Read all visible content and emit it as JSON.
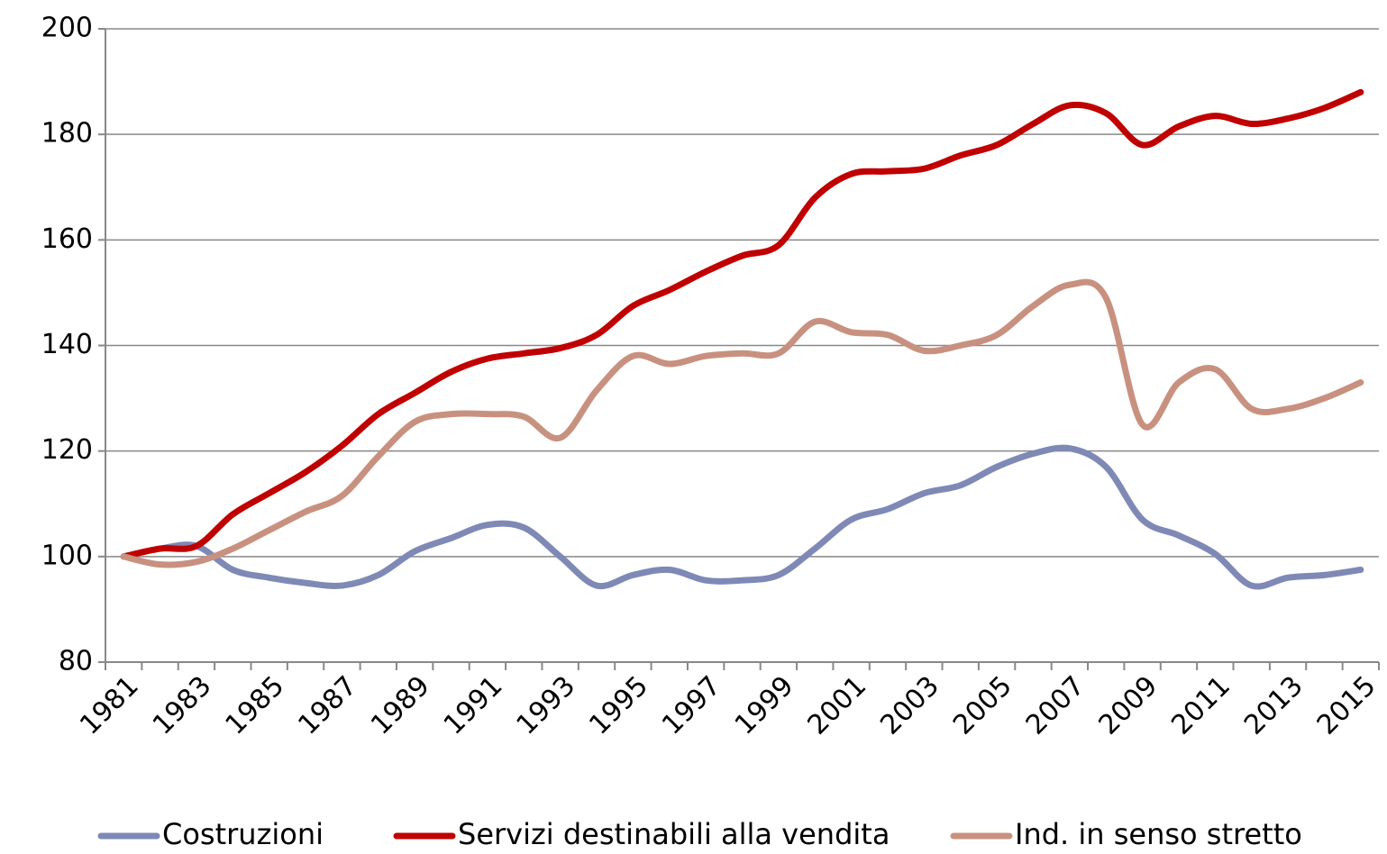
{
  "chart_data": {
    "type": "line",
    "categories": [
      "1981",
      null,
      "1983",
      null,
      "1985",
      null,
      "1987",
      null,
      "1989",
      null,
      "1991",
      null,
      "1993",
      null,
      "1995",
      null,
      "1997",
      null,
      "1999",
      null,
      "2001",
      null,
      "2003",
      null,
      "2005",
      null,
      "2007",
      null,
      "2009",
      null,
      "2011",
      null,
      "2013",
      null,
      "2015"
    ],
    "series": [
      {
        "name": "Costruzioni",
        "color": "#7f89b6",
        "values": [
          100,
          101.5,
          102,
          97.5,
          96,
          95,
          94.5,
          96.5,
          101,
          103.5,
          106,
          105.5,
          100,
          94.5,
          96.5,
          97.5,
          95.5,
          95.5,
          96.5,
          101.5,
          107,
          109,
          112,
          113.5,
          117,
          119.5,
          120.5,
          117,
          107,
          104,
          100.5,
          94.5,
          96,
          96.5,
          97.5
        ]
      },
      {
        "name": "Servizi destinabili alla vendita",
        "color": "#c00000",
        "values": [
          100,
          101.5,
          102,
          108,
          112,
          116,
          121,
          127,
          131,
          135,
          137.5,
          138.5,
          139.5,
          142,
          147.5,
          150.5,
          154,
          157,
          159,
          168,
          172.5,
          173,
          173.5,
          176,
          178,
          182,
          185.5,
          184,
          178,
          181.5,
          183.5,
          182,
          183,
          185,
          188
        ]
      },
      {
        "name": "Ind. in senso stretto",
        "color": "#c8917f",
        "values": [
          100,
          98.5,
          99,
          101.5,
          105,
          108.5,
          111.5,
          119,
          125.5,
          127,
          127,
          126.5,
          122.5,
          131.5,
          138,
          136.5,
          138,
          138.5,
          138.5,
          144.5,
          142.5,
          142,
          139,
          140,
          142,
          147.5,
          151.5,
          149,
          125,
          133,
          135.5,
          128,
          128,
          130,
          133
        ]
      }
    ],
    "ylim": [
      80,
      200
    ],
    "yticks": [
      80,
      100,
      120,
      140,
      160,
      180,
      200
    ],
    "grid": true,
    "legend": "bottom"
  }
}
